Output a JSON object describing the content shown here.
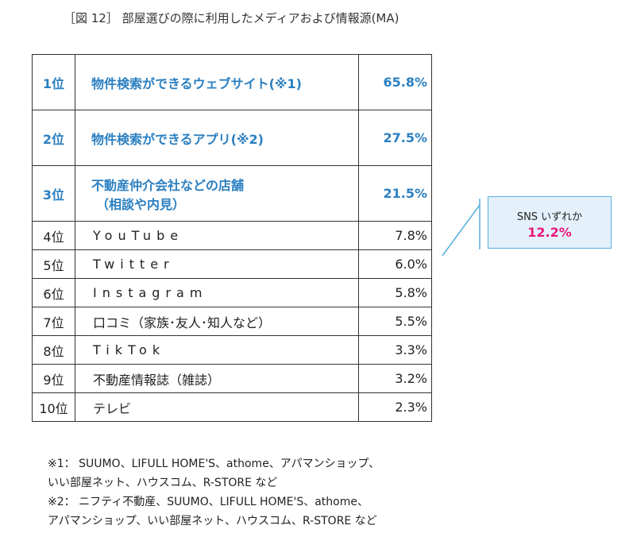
{
  "title": "［図 12］ 部屋選びの際に利用したメディアおよび情報源(MA)",
  "rows": [
    {
      "rank": "1位",
      "item": "物件検索ができるウェブサイト(※1)",
      "item2": "",
      "value": "65.8%"
    },
    {
      "rank": "2位",
      "item": "物件検索ができるアプリ(※2)",
      "item2": "",
      "value": "27.5%"
    },
    {
      "rank": "3位",
      "item": "不動産仲介会社などの店舗",
      "item2": "（相談や内見）",
      "value": "21.5%"
    },
    {
      "rank": "4位",
      "item": "YouTube",
      "item2": "",
      "value": "7.8%"
    },
    {
      "rank": "5位",
      "item": "Twitter",
      "item2": "",
      "value": "6.0%"
    },
    {
      "rank": "6位",
      "item": "Instagram",
      "item2": "",
      "value": "5.8%"
    },
    {
      "rank": "7位",
      "item": "口コミ（家族･友人･知人など）",
      "item2": "",
      "value": "5.5%"
    },
    {
      "rank": "8位",
      "item": "TikTok",
      "item2": "",
      "value": "3.3%"
    },
    {
      "rank": "9位",
      "item": "不動産情報誌（雑誌）",
      "item2": "",
      "value": "3.2%"
    },
    {
      "rank": "10位",
      "item": "テレビ",
      "item2": "",
      "value": "2.3%"
    }
  ],
  "callout": {
    "label": "SNS いずれか",
    "value": "12.2%"
  },
  "notes": [
    "※1： SUUMO、LIFULL HOME'S、athome、アパマンショップ、",
    "いい部屋ネット、ハウスコム、R-STORE など",
    "※2： ニフティ不動産、SUUMO、LIFULL HOME'S、athome、",
    "アパマンショップ、いい部屋ネット、ハウスコム、R-STORE など"
  ],
  "colors": {
    "highlight": "#2b7fc0",
    "callout_value": "#e8197a",
    "callout_border": "#5aaee0"
  }
}
